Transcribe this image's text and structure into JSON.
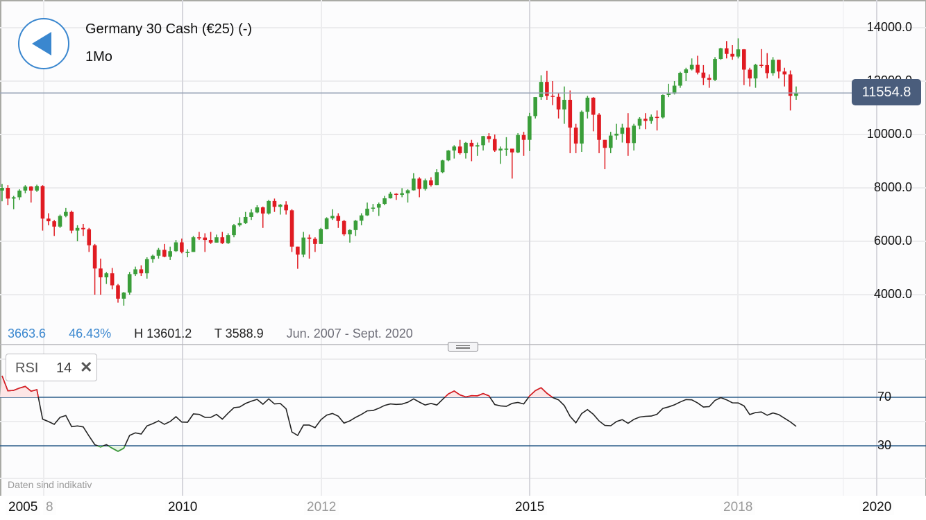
{
  "header": {
    "title": "Germany 30 Cash (€25) (-)",
    "interval": "1Mo",
    "back_icon": "back-triangle-icon"
  },
  "stats": {
    "value": "3663.6",
    "change": "46.43%",
    "high": "H 13601.2",
    "low": "T 3588.9",
    "range": "Jun. 2007 - Sept. 2020"
  },
  "indicator": {
    "name": "RSI",
    "period": "14",
    "close_icon": "close-x-icon"
  },
  "footer_note": "Daten sind indikativ",
  "current_price": "11554.8",
  "colors": {
    "up": "#3a9e3a",
    "down": "#e01b22",
    "accent": "#3a87cf",
    "price_line": "#9aa5b8",
    "rsi_bands": "#2b5c8a",
    "price_label": "#4a5d7c"
  },
  "chart_data": {
    "type": "candlestick",
    "start": "2007-06",
    "interval": "1Mo",
    "price_axis": {
      "ticks": [
        "14000.0",
        "12000.0",
        "10000.0",
        "8000.0",
        "6000.0",
        "4000.0"
      ],
      "tick_values": [
        14000,
        12000,
        10000,
        8000,
        6000,
        4000
      ]
    },
    "x_axis": {
      "labels": [
        {
          "text": "2005",
          "year": 2004.7,
          "major": true
        },
        {
          "text": "8",
          "year": 2008.1,
          "major": false
        },
        {
          "text": "2010",
          "year": 2010,
          "major": true
        },
        {
          "text": "2012",
          "year": 2012,
          "major": false
        },
        {
          "text": "2015",
          "year": 2015,
          "major": true
        },
        {
          "text": "2018",
          "year": 2018,
          "major": false
        },
        {
          "text": "2020",
          "year": 2020,
          "major": true
        }
      ],
      "grid_years": [
        2008,
        2010,
        2012,
        2015,
        2018,
        2020
      ]
    },
    "ohlc": [
      [
        7900,
        8150,
        7500,
        8000
      ],
      [
        8000,
        8100,
        7350,
        7600
      ],
      [
        7600,
        7700,
        7200,
        7650
      ],
      [
        7650,
        7950,
        7550,
        7900
      ],
      [
        7900,
        8100,
        7800,
        8050
      ],
      [
        8050,
        8070,
        7450,
        7900
      ],
      [
        7900,
        8120,
        7850,
        8070
      ],
      [
        8070,
        8100,
        6400,
        6850
      ],
      [
        6850,
        7050,
        6600,
        6750
      ],
      [
        6750,
        6800,
        6200,
        6550
      ],
      [
        6550,
        7000,
        6500,
        6950
      ],
      [
        6950,
        7250,
        6900,
        7100
      ],
      [
        7100,
        7150,
        6300,
        6400
      ],
      [
        6400,
        6600,
        6000,
        6500
      ],
      [
        6500,
        6650,
        6200,
        6450
      ],
      [
        6450,
        6500,
        5600,
        5850
      ],
      [
        5850,
        5900,
        4000,
        4980
      ],
      [
        4980,
        5350,
        4000,
        4650
      ],
      [
        4650,
        4850,
        4400,
        4800
      ],
      [
        4800,
        5000,
        4200,
        4350
      ],
      [
        4350,
        4400,
        3700,
        3850
      ],
      [
        3850,
        4100,
        3589,
        4080
      ],
      [
        4080,
        4850,
        4000,
        4770
      ],
      [
        4770,
        5050,
        4700,
        4950
      ],
      [
        4950,
        5100,
        4700,
        4800
      ],
      [
        4800,
        5400,
        4600,
        5330
      ],
      [
        5330,
        5500,
        5200,
        5460
      ],
      [
        5460,
        5750,
        5350,
        5680
      ],
      [
        5680,
        5900,
        5400,
        5420
      ],
      [
        5420,
        5800,
        5300,
        5630
      ],
      [
        5630,
        6050,
        5600,
        5960
      ],
      [
        5960,
        6100,
        5550,
        5600
      ],
      [
        5600,
        5700,
        5400,
        5600
      ],
      [
        5600,
        6200,
        5600,
        6150
      ],
      [
        6150,
        6350,
        6050,
        6140
      ],
      [
        6140,
        6300,
        5600,
        6050
      ],
      [
        6050,
        6350,
        5900,
        5950
      ],
      [
        5950,
        6250,
        5950,
        6150
      ],
      [
        6150,
        6350,
        5900,
        5930
      ],
      [
        5930,
        6300,
        5900,
        6230
      ],
      [
        6230,
        6650,
        6150,
        6600
      ],
      [
        6600,
        6900,
        6550,
        6680
      ],
      [
        6680,
        7100,
        6650,
        6910
      ],
      [
        6910,
        7200,
        6800,
        7080
      ],
      [
        7080,
        7350,
        7050,
        7270
      ],
      [
        7270,
        7300,
        6500,
        7040
      ],
      [
        7040,
        7550,
        7000,
        7510
      ],
      [
        7510,
        7600,
        7100,
        7290
      ],
      [
        7290,
        7400,
        7000,
        7370
      ],
      [
        7370,
        7500,
        7000,
        7160
      ],
      [
        7160,
        7200,
        5600,
        5800
      ],
      [
        5800,
        5800,
        4970,
        5500
      ],
      [
        5500,
        6350,
        5400,
        6140
      ],
      [
        6140,
        6250,
        5350,
        6090
      ],
      [
        6090,
        6150,
        5600,
        5900
      ],
      [
        5900,
        6500,
        5900,
        6460
      ],
      [
        6460,
        6900,
        6450,
        6860
      ],
      [
        6860,
        7200,
        6800,
        6950
      ],
      [
        6950,
        7050,
        6500,
        6760
      ],
      [
        6760,
        6800,
        6200,
        6260
      ],
      [
        6260,
        6450,
        5950,
        6420
      ],
      [
        6420,
        6800,
        6200,
        6770
      ],
      [
        6770,
        7050,
        6600,
        6970
      ],
      [
        6970,
        7450,
        6950,
        7220
      ],
      [
        7220,
        7400,
        7100,
        7260
      ],
      [
        7260,
        7450,
        6950,
        7400
      ],
      [
        7400,
        7700,
        7350,
        7610
      ],
      [
        7610,
        7850,
        7600,
        7780
      ],
      [
        7780,
        7800,
        7550,
        7740
      ],
      [
        7740,
        7990,
        7650,
        7800
      ],
      [
        7800,
        7950,
        7450,
        7910
      ],
      [
        7910,
        8550,
        7900,
        8350
      ],
      [
        8350,
        8400,
        7650,
        7960
      ],
      [
        7960,
        8350,
        7900,
        8280
      ],
      [
        8280,
        8400,
        8050,
        8100
      ],
      [
        8100,
        8700,
        8100,
        8590
      ],
      [
        8590,
        9050,
        8550,
        9030
      ],
      [
        9030,
        9420,
        9000,
        9400
      ],
      [
        9400,
        9600,
        9100,
        9550
      ],
      [
        9550,
        9800,
        9250,
        9300
      ],
      [
        9300,
        9720,
        9100,
        9690
      ],
      [
        9690,
        9800,
        9000,
        9550
      ],
      [
        9550,
        9700,
        9200,
        9600
      ],
      [
        9600,
        9950,
        9400,
        9940
      ],
      [
        9940,
        10050,
        9700,
        9830
      ],
      [
        9830,
        10000,
        9350,
        9400
      ],
      [
        9400,
        9550,
        8900,
        9470
      ],
      [
        9470,
        9900,
        9200,
        9470
      ],
      [
        9470,
        9450,
        8350,
        9330
      ],
      [
        9330,
        10050,
        9300,
        9980
      ],
      [
        9980,
        10100,
        9200,
        9800
      ],
      [
        9800,
        10810,
        9380,
        10690
      ],
      [
        10690,
        11400,
        10600,
        11400
      ],
      [
        11400,
        12220,
        11300,
        11970
      ],
      [
        11970,
        12390,
        11300,
        11450
      ],
      [
        11450,
        12000,
        11100,
        11410
      ],
      [
        11410,
        11550,
        10600,
        10940
      ],
      [
        10940,
        11800,
        10400,
        11300
      ],
      [
        11300,
        11650,
        9300,
        10260
      ],
      [
        10260,
        10400,
        9300,
        9660
      ],
      [
        9660,
        10900,
        9350,
        10850
      ],
      [
        10850,
        11450,
        10600,
        11380
      ],
      [
        11380,
        11400,
        10120,
        10740
      ],
      [
        10740,
        10800,
        9300,
        9800
      ],
      [
        9800,
        9800,
        8700,
        9500
      ],
      [
        9500,
        10100,
        9300,
        9960
      ],
      [
        9960,
        10400,
        9800,
        10030
      ],
      [
        10030,
        10400,
        9700,
        10260
      ],
      [
        10260,
        10800,
        9200,
        9680
      ],
      [
        9680,
        10400,
        9400,
        10330
      ],
      [
        10330,
        10650,
        10200,
        10590
      ],
      [
        10590,
        10800,
        10200,
        10510
      ],
      [
        10510,
        10750,
        10400,
        10660
      ],
      [
        10660,
        10900,
        10150,
        10640
      ],
      [
        10640,
        11500,
        10600,
        11480
      ],
      [
        11480,
        11900,
        11400,
        11530
      ],
      [
        11530,
        12000,
        11500,
        11830
      ],
      [
        11830,
        12350,
        11750,
        12310
      ],
      [
        12310,
        12500,
        12000,
        12440
      ],
      [
        12440,
        12850,
        12400,
        12610
      ],
      [
        12610,
        12950,
        12250,
        12320
      ],
      [
        12320,
        12600,
        11850,
        12120
      ],
      [
        12120,
        12250,
        11750,
        12050
      ],
      [
        12050,
        12900,
        12000,
        12830
      ],
      [
        12830,
        13250,
        12800,
        13230
      ],
      [
        13230,
        13500,
        12850,
        13020
      ],
      [
        13020,
        13350,
        12800,
        12920
      ],
      [
        12920,
        13601.2,
        12850,
        13190
      ],
      [
        13190,
        13200,
        11850,
        12430
      ],
      [
        12430,
        12500,
        11800,
        12100
      ],
      [
        12100,
        12650,
        11750,
        12610
      ],
      [
        12610,
        13200,
        12500,
        12600
      ],
      [
        12600,
        13050,
        12100,
        12300
      ],
      [
        12300,
        12900,
        12200,
        12800
      ],
      [
        12800,
        12800,
        12100,
        12360
      ],
      [
        12360,
        12500,
        11800,
        12250
      ],
      [
        12250,
        12400,
        10900,
        11450
      ],
      [
        11450,
        11800,
        11300,
        11554.8
      ]
    ],
    "rsi": {
      "period": 14,
      "upper": 70,
      "lower": 30,
      "ticks": [
        "70",
        "30"
      ],
      "values": [
        87.7,
        75.3,
        75.7,
        77.6,
        79,
        75,
        76.3,
        52,
        50,
        47.7,
        53.4,
        55,
        45.8,
        46.4,
        45.6,
        38,
        31,
        29,
        31,
        28,
        25.4,
        28,
        38.6,
        40.7,
        39.7,
        46.4,
        48.3,
        50.6,
        47.7,
        50,
        54,
        49.6,
        49.4,
        56.3,
        55.9,
        53.4,
        53.4,
        55.9,
        52,
        56.9,
        61.4,
        62,
        64.9,
        66.8,
        68.3,
        64.3,
        68.7,
        64.5,
        64.9,
        60.5,
        41.4,
        38.6,
        47.1,
        47.1,
        44.9,
        51.5,
        55.3,
        56.7,
        54.4,
        48.7,
        50.6,
        53.4,
        55.9,
        58.8,
        59.1,
        61,
        63.3,
        64.5,
        64.1,
        64.4,
        65.9,
        68.7,
        66,
        63.6,
        65,
        63.6,
        68.2,
        72.8,
        75.2,
        72,
        70.3,
        71.3,
        71.2,
        73.1,
        71.2,
        64,
        62.9,
        62.5,
        65,
        65.7,
        64.5,
        71.1,
        75.5,
        77.9,
        73.3,
        69.8,
        67.9,
        63.2,
        54.3,
        49,
        56.6,
        59.9,
        56,
        50.5,
        46.8,
        46.5,
        50,
        51.6,
        48.6,
        51.8,
        53.7,
        54.3,
        54.5,
        56,
        60.8,
        62.1,
        63.8,
        66.1,
        68.1,
        67.9,
        65.3,
        62,
        62.3,
        67.4,
        69.7,
        67.9,
        65.4,
        65.3,
        62.9,
        55.8,
        57.4,
        57.9,
        55.2,
        57.1,
        55.7,
        52.7,
        49.7,
        46
      ]
    }
  }
}
